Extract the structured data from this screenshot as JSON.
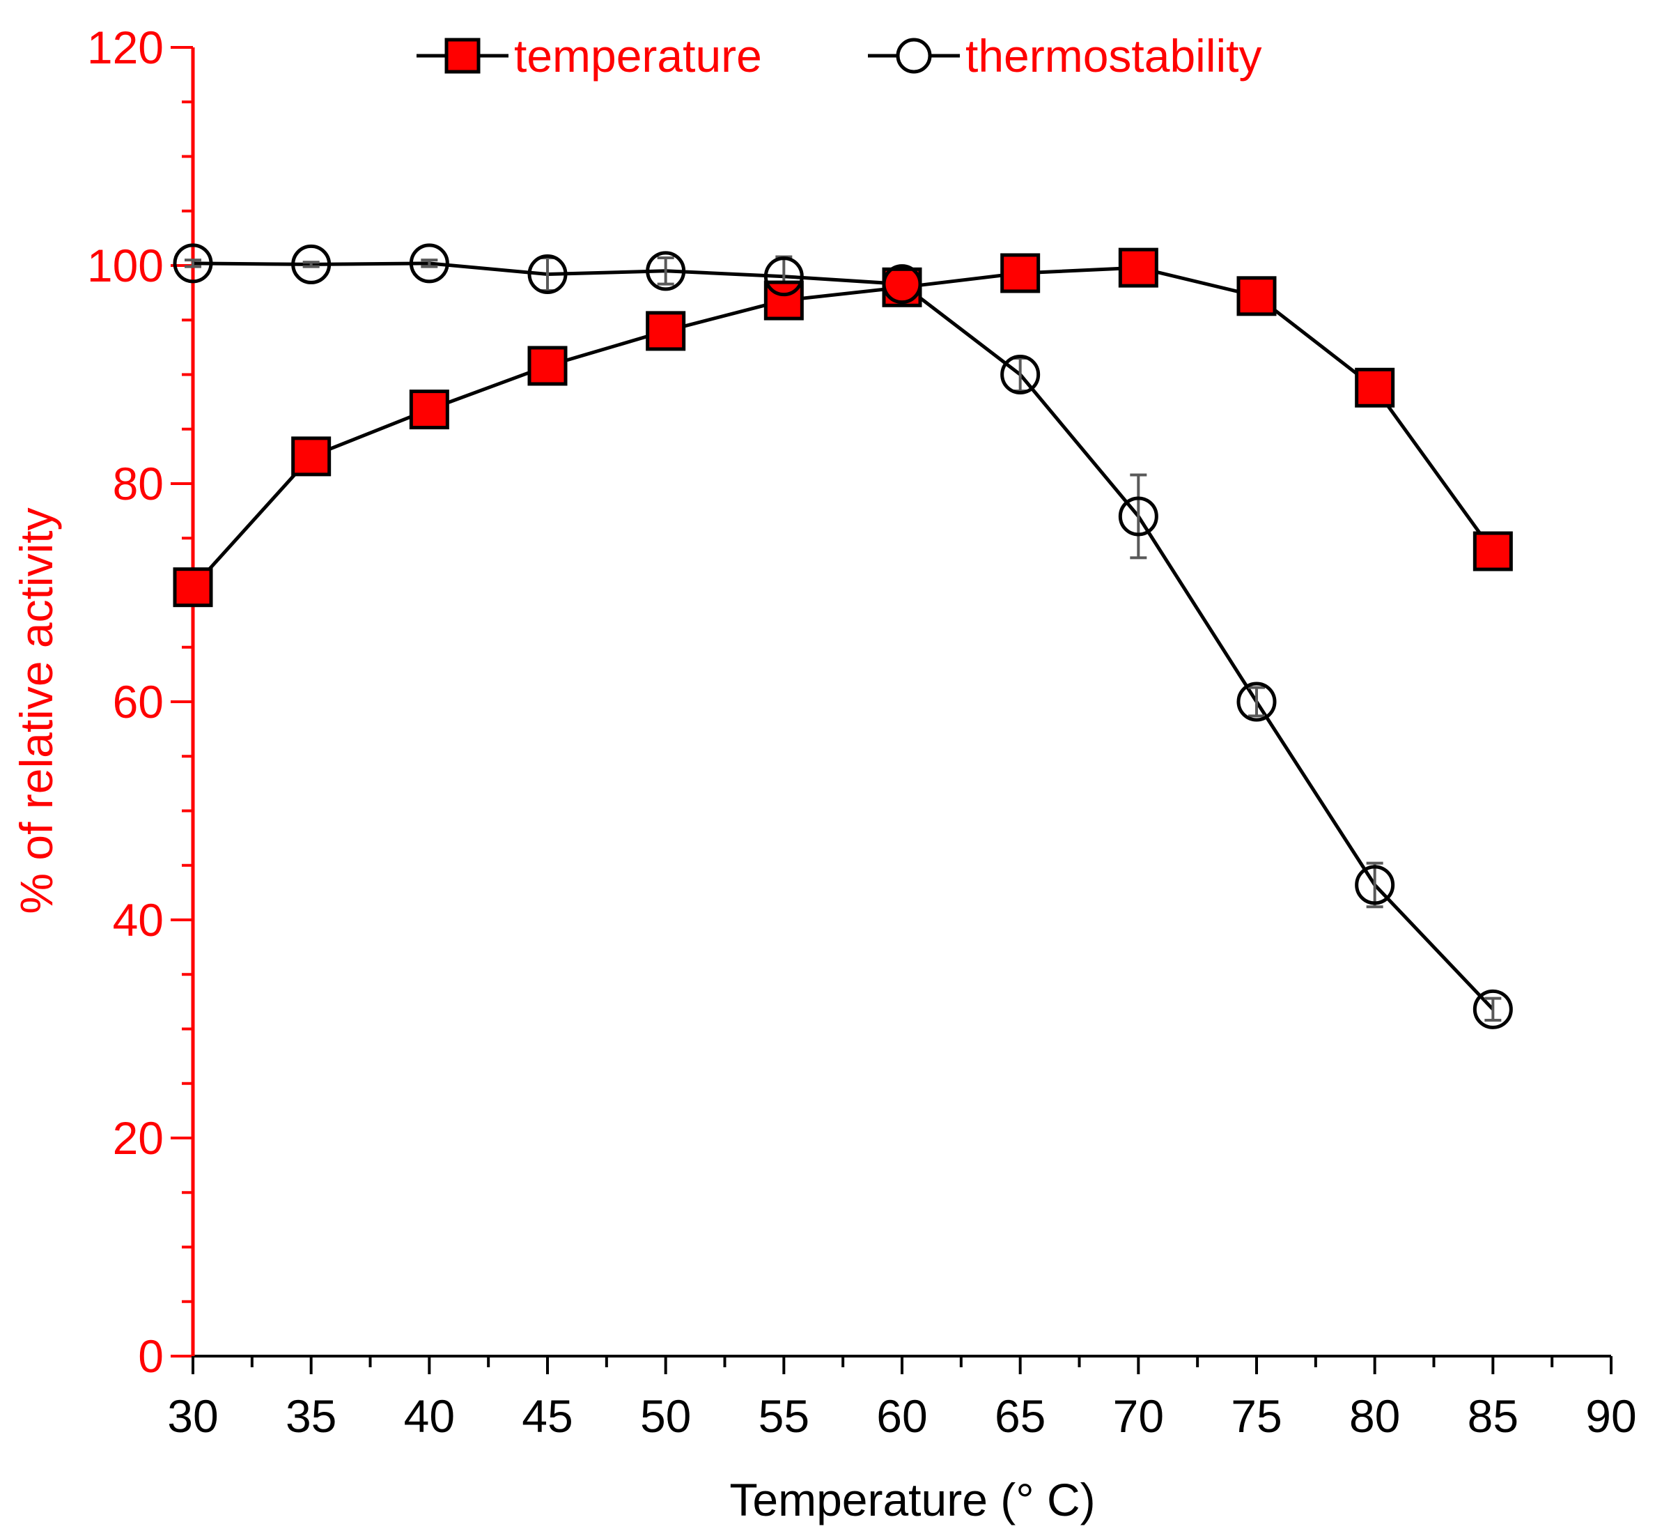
{
  "chart_data": {
    "type": "line",
    "title": "",
    "xlabel": "Temperature (° C)",
    "ylabel": "% of relative activity",
    "xlim": [
      30,
      90
    ],
    "ylim": [
      0,
      120
    ],
    "x_ticks": [
      30,
      35,
      40,
      45,
      50,
      55,
      60,
      65,
      70,
      75,
      80,
      85,
      90
    ],
    "y_ticks": [
      0,
      20,
      40,
      60,
      80,
      100,
      120
    ],
    "grid": false,
    "legend_position": "top-center",
    "colors": {
      "y_axis": "#ff0000",
      "y_tick_labels": "#ff0000",
      "y_title": "#ff0000",
      "x_axis": "#000000",
      "x_tick_labels": "#000000",
      "x_title": "#000000",
      "legend_text": "#ff0000",
      "series_line": "#000000",
      "square_fill": "#ff0000",
      "circle_fill": "#ffffff",
      "error_bar": "#595959"
    },
    "series": [
      {
        "name": "temperature",
        "marker": "square",
        "x": [
          30,
          35,
          40,
          45,
          50,
          55,
          60,
          65,
          70,
          75,
          80,
          85
        ],
        "y": [
          70.5,
          82.5,
          86.8,
          90.8,
          94.0,
          96.8,
          98.0,
          99.3,
          99.8,
          97.2,
          88.8,
          73.8
        ]
      },
      {
        "name": "thermostability",
        "marker": "circle",
        "x": [
          30,
          35,
          40,
          45,
          50,
          55,
          60,
          65,
          70,
          75,
          80,
          85
        ],
        "y": [
          100.2,
          100.1,
          100.2,
          99.2,
          99.5,
          99.0,
          98.3,
          90.0,
          77.0,
          60.0,
          43.2,
          31.8
        ],
        "error": [
          0.3,
          0.2,
          0.3,
          1.5,
          1.2,
          1.8,
          0.8,
          1.5,
          3.8,
          1.3,
          2.0,
          1.0
        ]
      }
    ]
  }
}
